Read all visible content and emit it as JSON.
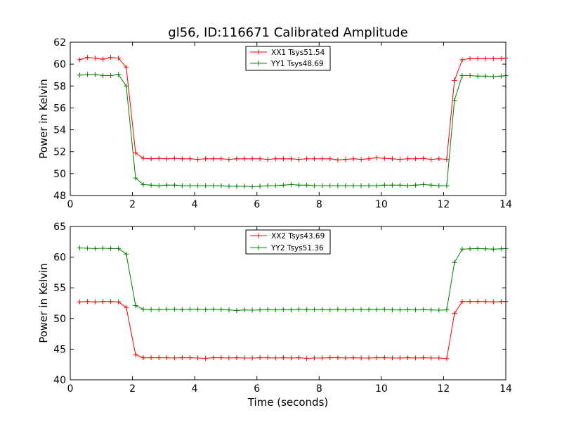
{
  "chart_data": [
    {
      "type": "line",
      "title": "gl56, ID:116671 Calibrated Amplitude",
      "xlabel": "",
      "ylabel": "Power in Kelvin",
      "xlim": [
        0,
        14
      ],
      "ylim": [
        48,
        62
      ],
      "xticks": [
        0,
        2,
        4,
        6,
        8,
        10,
        12,
        14
      ],
      "yticks": [
        48,
        50,
        52,
        54,
        56,
        58,
        60,
        62
      ],
      "x": [
        0.3,
        0.55,
        0.8,
        1.05,
        1.3,
        1.55,
        1.8,
        2.1,
        2.35,
        2.6,
        2.85,
        3.1,
        3.35,
        3.6,
        3.85,
        4.1,
        4.35,
        4.6,
        4.85,
        5.1,
        5.35,
        5.6,
        5.85,
        6.1,
        6.35,
        6.6,
        6.85,
        7.1,
        7.35,
        7.6,
        7.85,
        8.1,
        8.35,
        8.6,
        8.85,
        9.1,
        9.35,
        9.6,
        9.85,
        10.1,
        10.35,
        10.6,
        10.85,
        11.1,
        11.35,
        11.6,
        11.85,
        12.1,
        12.35,
        12.6,
        12.85,
        13.1,
        13.35,
        13.6,
        13.85,
        14.0
      ],
      "series": [
        {
          "name": "XX1 Tsys51.54",
          "color": "#ff0000",
          "values": [
            60.4,
            60.6,
            60.55,
            60.45,
            60.6,
            60.55,
            59.7,
            51.9,
            51.4,
            51.35,
            51.4,
            51.35,
            51.4,
            51.35,
            51.35,
            51.3,
            51.35,
            51.35,
            51.35,
            51.3,
            51.35,
            51.35,
            51.35,
            51.35,
            51.3,
            51.35,
            51.35,
            51.35,
            51.3,
            51.35,
            51.35,
            51.35,
            51.35,
            51.25,
            51.3,
            51.35,
            51.3,
            51.35,
            51.45,
            51.4,
            51.35,
            51.3,
            51.35,
            51.35,
            51.4,
            51.3,
            51.35,
            51.3,
            58.5,
            60.4,
            60.5,
            60.5,
            60.5,
            60.5,
            60.5,
            60.55
          ]
        },
        {
          "name": "YY1 Tsys48.69",
          "color": "#008000",
          "values": [
            59.0,
            59.05,
            59.05,
            58.95,
            58.95,
            59.05,
            58.0,
            49.6,
            49.0,
            48.95,
            48.9,
            48.95,
            48.95,
            48.9,
            48.9,
            48.9,
            48.9,
            48.9,
            48.9,
            48.85,
            48.85,
            48.85,
            48.8,
            48.85,
            48.9,
            48.9,
            48.95,
            49.0,
            48.95,
            48.95,
            48.9,
            48.9,
            48.9,
            48.9,
            48.9,
            48.9,
            48.9,
            48.9,
            48.9,
            48.95,
            48.95,
            48.95,
            48.9,
            48.95,
            49.0,
            48.95,
            48.9,
            48.9,
            56.7,
            58.95,
            58.95,
            58.9,
            58.9,
            58.85,
            58.9,
            58.95
          ]
        }
      ]
    },
    {
      "type": "line",
      "title": "",
      "xlabel": "Time (seconds)",
      "ylabel": "Power in Kelvin",
      "xlim": [
        0,
        14
      ],
      "ylim": [
        40,
        65
      ],
      "xticks": [
        0,
        2,
        4,
        6,
        8,
        10,
        12,
        14
      ],
      "yticks": [
        40,
        45,
        50,
        55,
        60,
        65
      ],
      "x": [
        0.3,
        0.55,
        0.8,
        1.05,
        1.3,
        1.55,
        1.8,
        2.1,
        2.35,
        2.6,
        2.85,
        3.1,
        3.35,
        3.6,
        3.85,
        4.1,
        4.35,
        4.6,
        4.85,
        5.1,
        5.35,
        5.6,
        5.85,
        6.1,
        6.35,
        6.6,
        6.85,
        7.1,
        7.35,
        7.6,
        7.85,
        8.1,
        8.35,
        8.6,
        8.85,
        9.1,
        9.35,
        9.6,
        9.85,
        10.1,
        10.35,
        10.6,
        10.85,
        11.1,
        11.35,
        11.6,
        11.85,
        12.1,
        12.35,
        12.6,
        12.85,
        13.1,
        13.35,
        13.6,
        13.85,
        14.0
      ],
      "series": [
        {
          "name": "XX2 Tsys43.69",
          "color": "#ff0000",
          "values": [
            52.7,
            52.75,
            52.7,
            52.75,
            52.75,
            52.7,
            51.8,
            44.1,
            43.6,
            43.6,
            43.6,
            43.6,
            43.55,
            43.6,
            43.6,
            43.55,
            43.5,
            43.6,
            43.6,
            43.55,
            43.6,
            43.55,
            43.55,
            43.6,
            43.6,
            43.55,
            43.6,
            43.55,
            43.6,
            43.5,
            43.55,
            43.55,
            43.6,
            43.6,
            43.55,
            43.6,
            43.55,
            43.55,
            43.6,
            43.6,
            43.55,
            43.55,
            43.6,
            43.55,
            43.6,
            43.55,
            43.55,
            43.45,
            50.8,
            52.75,
            52.75,
            52.75,
            52.75,
            52.7,
            52.75,
            52.75
          ]
        },
        {
          "name": "YY2 Tsys51.36",
          "color": "#008000",
          "values": [
            61.5,
            61.45,
            61.4,
            61.45,
            61.4,
            61.4,
            60.5,
            52.1,
            51.5,
            51.45,
            51.45,
            51.5,
            51.5,
            51.45,
            51.5,
            51.5,
            51.45,
            51.5,
            51.45,
            51.4,
            51.3,
            51.4,
            51.35,
            51.4,
            51.45,
            51.4,
            51.45,
            51.4,
            51.5,
            51.45,
            51.45,
            51.45,
            51.4,
            51.5,
            51.4,
            51.45,
            51.45,
            51.45,
            51.45,
            51.5,
            51.4,
            51.4,
            51.45,
            51.4,
            51.45,
            51.4,
            51.35,
            51.4,
            59.1,
            61.3,
            61.35,
            61.4,
            61.35,
            61.3,
            61.35,
            61.4
          ]
        }
      ]
    }
  ]
}
